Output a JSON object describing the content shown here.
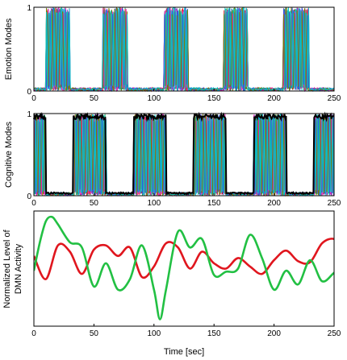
{
  "chart_data": [
    {
      "type": "line",
      "ylabel": "Emotion Modes",
      "xlabel": "",
      "xlim": [
        0,
        250
      ],
      "ylim": [
        0,
        1
      ],
      "xticks": [
        "0",
        "50",
        "100",
        "150",
        "200",
        "250"
      ],
      "yticks": [
        "0",
        "1"
      ],
      "bursts_sec": [
        [
          10,
          30
        ],
        [
          57,
          78
        ],
        [
          108,
          128
        ],
        [
          158,
          178
        ],
        [
          208,
          229
        ]
      ],
      "mode_colors": [
        "#00a651",
        "#e0161e",
        "#7b2fbe",
        "#00a0c8",
        "#f020b0",
        "#3355dd",
        "#7a7a00",
        "#00c8c8"
      ],
      "grid": false
    },
    {
      "type": "line",
      "ylabel": "Cognitive Modes",
      "xlabel": "",
      "xlim": [
        0,
        250
      ],
      "ylim": [
        0,
        1
      ],
      "xticks": [
        "0",
        "50",
        "100",
        "150",
        "200",
        "250"
      ],
      "yticks": [
        "0",
        "1"
      ],
      "envelope_color": "#000000",
      "bursts_sec": [
        [
          -3,
          10
        ],
        [
          33,
          60
        ],
        [
          83,
          110
        ],
        [
          133,
          160
        ],
        [
          183,
          210
        ],
        [
          233,
          252
        ]
      ],
      "mode_colors": [
        "#00a651",
        "#e0161e",
        "#7b2fbe",
        "#00a0c8",
        "#f020b0",
        "#3355dd",
        "#7a7a00",
        "#00c8c8"
      ],
      "grid": false
    },
    {
      "type": "line",
      "ylabel": "Normalized Level of DMN Activity",
      "ylabel_lines": [
        "Normalized Level of",
        "DMN Activity"
      ],
      "xlabel": "Time  [sec]",
      "xlim": [
        0,
        250
      ],
      "xticks": [
        "0",
        "50",
        "100",
        "150",
        "200",
        "250"
      ],
      "ylim": [
        0,
        1
      ],
      "grid": false,
      "series": [
        {
          "color": "#e0161e",
          "x": [
            0,
            10,
            20,
            30,
            40,
            50,
            60,
            70,
            80,
            90,
            100,
            110,
            120,
            130,
            140,
            150,
            160,
            170,
            180,
            190,
            200,
            210,
            220,
            230,
            240,
            250,
            255
          ],
          "values": [
            0.62,
            0.4,
            0.72,
            0.66,
            0.45,
            0.68,
            0.72,
            0.62,
            0.7,
            0.42,
            0.52,
            0.74,
            0.7,
            0.5,
            0.66,
            0.55,
            0.5,
            0.6,
            0.52,
            0.45,
            0.58,
            0.67,
            0.57,
            0.56,
            0.74,
            0.78,
            0.68
          ]
        },
        {
          "color": "#22c043",
          "x": [
            0,
            5,
            10,
            15,
            20,
            30,
            40,
            50,
            60,
            70,
            80,
            90,
            100,
            105,
            110,
            120,
            130,
            140,
            150,
            160,
            170,
            180,
            190,
            200,
            210,
            220,
            230,
            240,
            250,
            255
          ],
          "values": [
            0.48,
            0.75,
            0.95,
            0.99,
            0.92,
            0.75,
            0.7,
            0.33,
            0.55,
            0.3,
            0.4,
            0.72,
            0.3,
            0.02,
            0.3,
            0.85,
            0.7,
            0.78,
            0.44,
            0.47,
            0.5,
            0.82,
            0.6,
            0.3,
            0.48,
            0.35,
            0.58,
            0.38,
            0.46,
            0.49
          ]
        }
      ]
    }
  ]
}
